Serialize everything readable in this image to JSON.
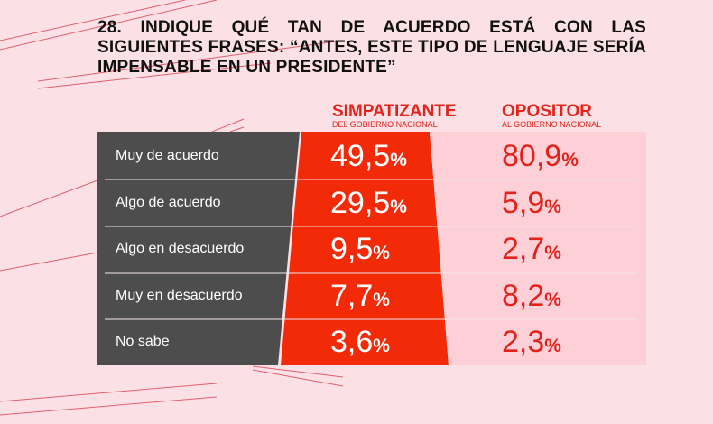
{
  "title_number": "28.",
  "title_text": "INDIQUE QUÉ TAN DE ACUERDO ESTÁ CON LAS SIGUIENTES FRASES: “ANTES, ESTE TIPO DE LENGUAJE SERÍA IMPENSABLE EN UN PRESIDENTE”",
  "colors": {
    "background": "#fbe1e6",
    "label_panel": "#4d4d4d",
    "simpatizante": "#f22a08",
    "opositor": "#fdd0d8",
    "accent": "#e3231b"
  },
  "chart_data": {
    "type": "table",
    "columns": [
      {
        "name": "SIMPATIZANTE",
        "subtitle": "DEL GOBIERNO NACIONAL"
      },
      {
        "name": "OPOSITOR",
        "subtitle": "AL GOBIERNO NACIONAL"
      }
    ],
    "rows": [
      {
        "label": "Muy de acuerdo",
        "values": [
          "49,5",
          "80,9"
        ]
      },
      {
        "label": "Algo de acuerdo",
        "values": [
          "29,5",
          "5,9"
        ]
      },
      {
        "label": "Algo en desacuerdo",
        "values": [
          "9,5",
          "2,7"
        ]
      },
      {
        "label": "Muy en desacuerdo",
        "values": [
          "7,7",
          "8,2"
        ]
      },
      {
        "label": "No sabe",
        "values": [
          "3,6",
          "2,3"
        ]
      }
    ],
    "unit": "%"
  }
}
